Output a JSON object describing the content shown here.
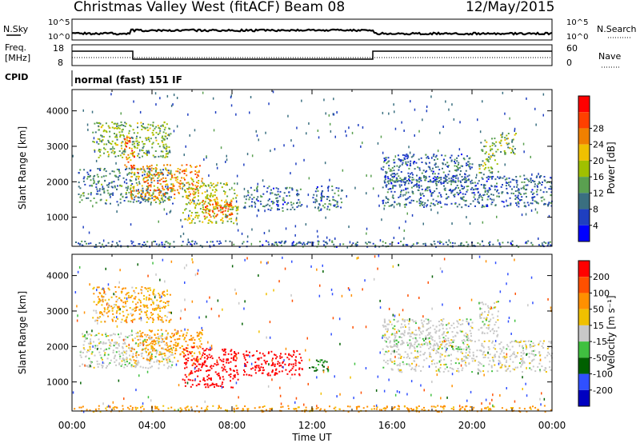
{
  "header": {
    "station": "Christmas Valley West (fitACF)",
    "beam": "Beam 08",
    "date": "12/May/2015"
  },
  "summary": {
    "nsky_label": "N.Sky",
    "nsearch_label": "N.Search",
    "noise_ticks": [
      "10^5",
      "10^0"
    ],
    "freq_label_line1": "Freq.",
    "freq_label_line2": "[MHz]",
    "freq_ticks": [
      "18",
      "8"
    ],
    "nave_label": "Nave",
    "nave_ticks": [
      "60",
      "0"
    ],
    "cpid_label": "CPID",
    "cpid_text": "normal (fast) 151 IF"
  },
  "chart_data": [
    {
      "type": "heatmap",
      "name": "power",
      "ylabel": "Slant Range [km]",
      "xlabel": "",
      "ylim": [
        180,
        4600
      ],
      "yticks": [
        1000,
        2000,
        3000,
        4000
      ],
      "xlim": [
        0,
        24
      ],
      "colorbar": {
        "label": "Power [dB]",
        "ticks": [
          "4",
          "8",
          "12",
          "16",
          "20",
          "24",
          "28"
        ],
        "colors": [
          "#0000ff",
          "#1f3fc0",
          "#3a6f80",
          "#5aa050",
          "#a0c000",
          "#f0c000",
          "#f08000",
          "#ff4000",
          "#ff0000"
        ]
      },
      "regions": [
        {
          "t0": 0.3,
          "t1": 5.0,
          "r0": 1400,
          "r1": 2400,
          "value": 10
        },
        {
          "t0": 1.0,
          "t1": 4.9,
          "r0": 2700,
          "r1": 3700,
          "value": 14
        },
        {
          "t0": 2.5,
          "t1": 3.1,
          "r0": 2400,
          "r1": 3300,
          "value": 24
        },
        {
          "t0": 2.9,
          "t1": 6.5,
          "r0": 1500,
          "r1": 2500,
          "value": 22
        },
        {
          "t0": 5.5,
          "t1": 8.3,
          "r0": 850,
          "r1": 2000,
          "value": 16
        },
        {
          "t0": 6.5,
          "t1": 8.0,
          "r0": 1000,
          "r1": 1600,
          "value": 24
        },
        {
          "t0": 8.5,
          "t1": 11.5,
          "r0": 1200,
          "r1": 1900,
          "value": 8
        },
        {
          "t0": 12.0,
          "t1": 13.5,
          "r0": 1200,
          "r1": 1900,
          "value": 8
        },
        {
          "t0": 15.5,
          "t1": 24.0,
          "r0": 1300,
          "r1": 2200,
          "value": 8
        },
        {
          "t0": 15.5,
          "t1": 20.0,
          "r0": 2000,
          "r1": 2800,
          "value": 8
        },
        {
          "t0": 20.3,
          "t1": 21.3,
          "r0": 2200,
          "r1": 3300,
          "value": 14
        },
        {
          "t0": 21.3,
          "t1": 22.2,
          "r0": 2800,
          "r1": 3400,
          "value": 14
        },
        {
          "t0": 0.0,
          "t1": 24.0,
          "r0": 180,
          "r1": 350,
          "value": 8
        }
      ]
    },
    {
      "type": "heatmap",
      "name": "velocity",
      "ylabel": "Slant Range [km]",
      "xlabel": "Time UT",
      "ylim": [
        180,
        4600
      ],
      "yticks": [
        1000,
        2000,
        3000,
        4000
      ],
      "xlim": [
        0,
        24
      ],
      "xticks": [
        "00:00",
        "04:00",
        "08:00",
        "12:00",
        "16:00",
        "20:00",
        "00:00"
      ],
      "colorbar": {
        "label": "Velocity [m s⁻¹]",
        "ticks": [
          "200",
          "100",
          "50",
          "15",
          "-15",
          "-50",
          "-100",
          "-200"
        ],
        "colors": [
          "#0000c0",
          "#3050ff",
          "#006000",
          "#40c040",
          "#c8c8c8",
          "#f0c000",
          "#ff9000",
          "#ff5000",
          "#ff0000"
        ]
      },
      "regions": [
        {
          "t0": 0.3,
          "t1": 5.0,
          "r0": 1400,
          "r1": 2400,
          "value": 0
        },
        {
          "t0": 1.0,
          "t1": 4.9,
          "r0": 2700,
          "r1": 3700,
          "value": -30
        },
        {
          "t0": 2.9,
          "t1": 6.5,
          "r0": 1600,
          "r1": 2500,
          "value": -40
        },
        {
          "t0": 5.5,
          "t1": 8.3,
          "r0": 850,
          "r1": 2000,
          "value": -200
        },
        {
          "t0": 8.5,
          "t1": 11.5,
          "r0": 1200,
          "r1": 1900,
          "value": -200
        },
        {
          "t0": 11.8,
          "t1": 12.8,
          "r0": 1300,
          "r1": 1700,
          "value": 40
        },
        {
          "t0": 15.5,
          "t1": 24.0,
          "r0": 1300,
          "r1": 2200,
          "value": 0
        },
        {
          "t0": 15.5,
          "t1": 20.0,
          "r0": 2000,
          "r1": 2800,
          "value": 0
        },
        {
          "t0": 20.3,
          "t1": 21.3,
          "r0": 2300,
          "r1": 3300,
          "value": 0
        },
        {
          "t0": 0.0,
          "t1": 24.0,
          "r0": 180,
          "r1": 350,
          "value": -40
        }
      ]
    }
  ]
}
